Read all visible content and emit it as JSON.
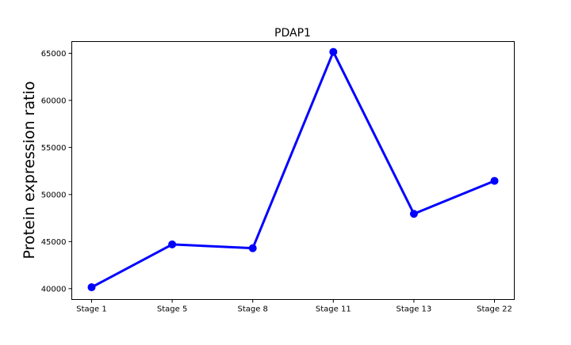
{
  "chart_data": {
    "type": "line",
    "title": "PDAP1",
    "xlabel": "",
    "ylabel": "Protein expression ratio",
    "categories": [
      "Stage 1",
      "Stage 5",
      "Stage 8",
      "Stage 11",
      "Stage 13",
      "Stage 22"
    ],
    "series": [
      {
        "values": [
          40150,
          44700,
          44300,
          65150,
          47950,
          51450
        ],
        "color": "#0000ff"
      }
    ],
    "ylim": [
      38850,
      66250
    ],
    "yticks": [
      40000,
      45000,
      50000,
      55000,
      60000,
      65000
    ],
    "grid": false,
    "legend": "none"
  }
}
